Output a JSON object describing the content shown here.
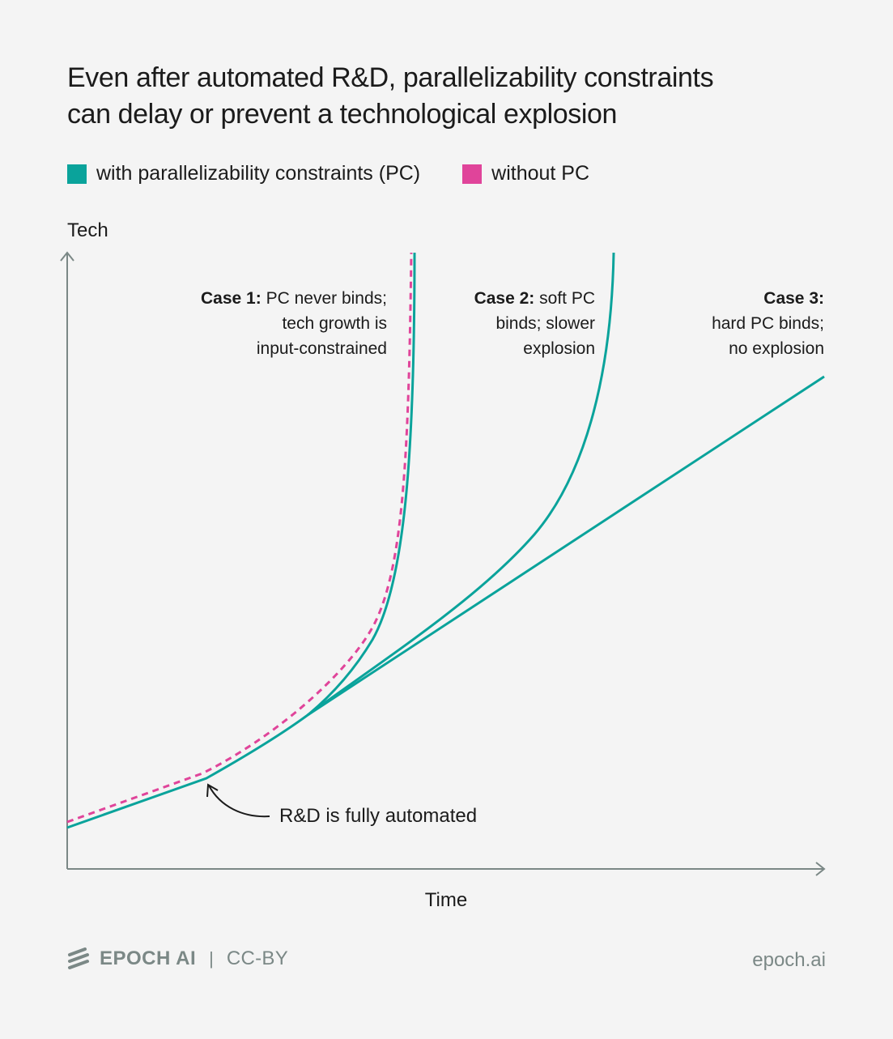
{
  "title": {
    "line1": "Even after automated R&D, parallelizability constraints",
    "line2": "can delay or prevent a technological explosion"
  },
  "legend": [
    {
      "label": "with parallelizability constraints (PC)",
      "color": "#0aa39b"
    },
    {
      "label": "without PC",
      "color": "#e0449a"
    }
  ],
  "axes": {
    "y_label": "Tech",
    "x_label": "Time",
    "color": "#7b8886"
  },
  "cases": [
    {
      "bold": "Case 1:",
      "rest": "PC never binds;",
      "line2": "tech growth is",
      "line3": "input-constrained"
    },
    {
      "bold": "Case 2:",
      "rest": "soft PC",
      "line2": "binds; slower",
      "line3": "explosion"
    },
    {
      "bold": "Case 3:",
      "rest": "",
      "line2": "hard PC binds;",
      "line3": "no explosion"
    }
  ],
  "annotation": "R&D is fully automated",
  "footer": {
    "brand": "EPOCH AI",
    "separator": "|",
    "license": "CC-BY",
    "site": "epoch.ai"
  }
}
